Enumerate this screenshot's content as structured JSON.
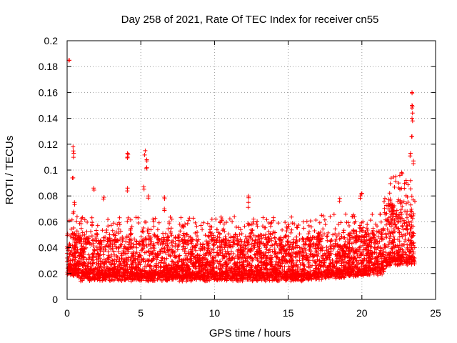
{
  "chart_data": {
    "type": "scatter",
    "title": "Day 258 of 2021, Rate Of TEC Index for receiver cn55",
    "xlabel": "GPS time / hours",
    "ylabel": "ROTI / TECUs",
    "xlim": [
      0,
      25
    ],
    "ylim": [
      0,
      0.2
    ],
    "xticks": [
      0,
      5,
      10,
      15,
      20,
      25
    ],
    "yticks": [
      0,
      0.02,
      0.04,
      0.06,
      0.08,
      0.1,
      0.12,
      0.14,
      0.16,
      0.18,
      0.2
    ],
    "xtick_labels": [
      "0",
      "5",
      "10",
      "15",
      "20",
      "25"
    ],
    "ytick_labels": [
      "0",
      "0.02",
      "0.04",
      "0.06",
      "0.08",
      "0.1",
      "0.12",
      "0.14",
      "0.16",
      "0.18",
      "0.2"
    ],
    "grid": true,
    "marker": "+",
    "color": "#ff0000",
    "series": [
      {
        "name": "ROTI",
        "x_range": [
          0,
          23.6
        ],
        "typical_range": [
          0.01,
          0.04
        ],
        "peaks": [
          [
            0.15,
            0.185
          ],
          [
            0.4,
            0.118
          ],
          [
            0.45,
            0.113
          ],
          [
            0.4,
            0.094
          ],
          [
            0.5,
            0.075
          ],
          [
            1.8,
            0.086
          ],
          [
            2.5,
            0.079
          ],
          [
            4.1,
            0.113
          ],
          [
            4.1,
            0.11
          ],
          [
            4.1,
            0.086
          ],
          [
            5.3,
            0.115
          ],
          [
            5.4,
            0.108
          ],
          [
            5.4,
            0.102
          ],
          [
            5.2,
            0.087
          ],
          [
            5.5,
            0.08
          ],
          [
            6.6,
            0.079
          ],
          [
            6.6,
            0.07
          ],
          [
            12.3,
            0.08
          ],
          [
            12.3,
            0.075
          ],
          [
            15.0,
            0.058
          ],
          [
            18.5,
            0.078
          ],
          [
            19.9,
            0.08
          ],
          [
            20.0,
            0.082
          ],
          [
            22.3,
            0.095
          ],
          [
            22.5,
            0.09
          ],
          [
            22.7,
            0.098
          ],
          [
            23.0,
            0.092
          ],
          [
            23.4,
            0.16
          ],
          [
            23.4,
            0.15
          ],
          [
            23.4,
            0.148
          ],
          [
            23.4,
            0.14
          ],
          [
            23.4,
            0.126
          ],
          [
            23.5,
            0.107
          ],
          [
            23.3,
            0.113
          ]
        ]
      }
    ]
  }
}
